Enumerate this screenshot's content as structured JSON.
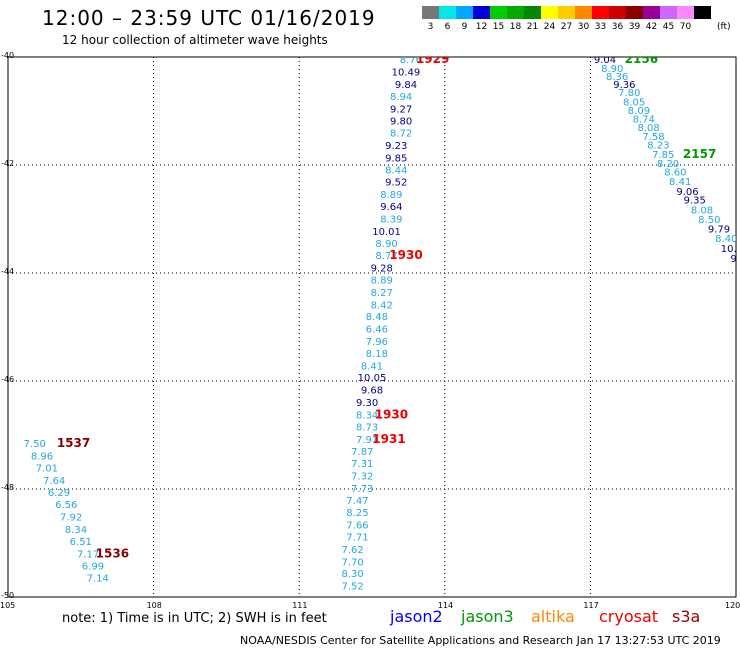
{
  "title": "12:00 – 23:59 UTC 01/16/2019",
  "subtitle": "12 hour collection of altimeter wave heights",
  "scale": {
    "unit": "(ft)",
    "levels": [
      {
        "label": "3",
        "color": "#777777"
      },
      {
        "label": "6",
        "color": "#00e8e8"
      },
      {
        "label": "9",
        "color": "#00a8ff"
      },
      {
        "label": "12",
        "color": "#0000dd"
      },
      {
        "label": "15",
        "color": "#00cc00"
      },
      {
        "label": "18",
        "color": "#00aa00"
      },
      {
        "label": "21",
        "color": "#008800"
      },
      {
        "label": "24",
        "color": "#ffff00"
      },
      {
        "label": "27",
        "color": "#ffcc00"
      },
      {
        "label": "30",
        "color": "#ff8800"
      },
      {
        "label": "33",
        "color": "#ff0000"
      },
      {
        "label": "36",
        "color": "#cc0000"
      },
      {
        "label": "39",
        "color": "#880000"
      },
      {
        "label": "42",
        "color": "#990099"
      },
      {
        "label": "45",
        "color": "#cc66ff"
      },
      {
        "label": "70",
        "color": "#ff88ff"
      },
      {
        "label": "",
        "color": "#000000"
      }
    ]
  },
  "note": "note:  1) Time is in UTC; 2) SWH is in feet",
  "satellites": [
    {
      "name": "jason2",
      "color": "#0000ff"
    },
    {
      "name": "jason3",
      "color": "#009900"
    },
    {
      "name": "altika",
      "color": "#ff8800"
    },
    {
      "name": "cryosat",
      "color": "#ee0000"
    },
    {
      "name": "s3a",
      "color": "#990000"
    }
  ],
  "credit": "NOAA/NESDIS Center for Satellite Applications and Research    Jan 17 13:27:53 UTC 2019",
  "chart_data": {
    "type": "scatter",
    "xlim": [
      105,
      120
    ],
    "ylim": [
      -50,
      -40
    ],
    "x_ticks": [
      "105",
      "108",
      "111",
      "114",
      "117",
      "120"
    ],
    "y_ticks": [
      "-40",
      "-42",
      "-44",
      "-46",
      "-48",
      "-50"
    ],
    "grid": true,
    "colors": {
      "light": "#22a8dd",
      "dark": "#000088"
    },
    "tracks": [
      {
        "id": "track-1929",
        "points": [
          [
            113.3,
            -40.04,
            "8.76",
            "light"
          ],
          [
            113.2,
            -40.27,
            "10.49",
            "dark"
          ],
          [
            113.2,
            -40.5,
            "9.84",
            "dark"
          ],
          [
            113.1,
            -40.72,
            "8.94",
            "light"
          ],
          [
            113.1,
            -40.95,
            "9.27",
            "dark"
          ],
          [
            113.1,
            -41.18,
            "9.80",
            "dark"
          ],
          [
            113.1,
            -41.4,
            "8.72",
            "light"
          ],
          [
            113.0,
            -41.63,
            "9.23",
            "dark"
          ],
          [
            113.0,
            -41.86,
            "9.85",
            "dark"
          ],
          [
            113.0,
            -42.08,
            "8.44",
            "light"
          ],
          [
            113.0,
            -42.31,
            "9.52",
            "dark"
          ],
          [
            112.9,
            -42.54,
            "8.89",
            "light"
          ],
          [
            112.9,
            -42.76,
            "9.64",
            "dark"
          ],
          [
            112.9,
            -42.99,
            "8.39",
            "light"
          ],
          [
            112.8,
            -43.22,
            "10.01",
            "dark"
          ],
          [
            112.8,
            -43.44,
            "8.90",
            "light"
          ],
          [
            112.8,
            -43.67,
            "8.77",
            "light"
          ],
          [
            112.7,
            -43.9,
            "9.28",
            "dark"
          ],
          [
            112.7,
            -44.12,
            "8.89",
            "light"
          ],
          [
            112.7,
            -44.35,
            "8.27",
            "light"
          ],
          [
            112.7,
            -44.58,
            "8.42",
            "light"
          ],
          [
            112.6,
            -44.8,
            "8.48",
            "light"
          ],
          [
            112.6,
            -45.03,
            "6.46",
            "light"
          ],
          [
            112.6,
            -45.26,
            "7.96",
            "light"
          ],
          [
            112.6,
            -45.48,
            "8.18",
            "light"
          ],
          [
            112.5,
            -45.71,
            "8.41",
            "light"
          ],
          [
            112.5,
            -45.93,
            "10.05",
            "dark"
          ],
          [
            112.5,
            -46.16,
            "9.68",
            "dark"
          ],
          [
            112.4,
            -46.39,
            "9.30",
            "dark"
          ],
          [
            112.4,
            -46.62,
            "8.34",
            "light"
          ],
          [
            112.4,
            -46.84,
            "8.73",
            "light"
          ],
          [
            112.4,
            -47.07,
            "7.91",
            "light"
          ],
          [
            112.3,
            -47.3,
            "7.87",
            "light"
          ],
          [
            112.3,
            -47.52,
            "7.31",
            "light"
          ],
          [
            112.3,
            -47.75,
            "7.32",
            "light"
          ],
          [
            112.3,
            -47.98,
            "7.73",
            "light"
          ],
          [
            112.2,
            -48.2,
            "7.47",
            "light"
          ],
          [
            112.2,
            -48.43,
            "8.25",
            "light"
          ],
          [
            112.2,
            -48.66,
            "7.66",
            "light"
          ],
          [
            112.2,
            -48.88,
            "7.71",
            "light"
          ],
          [
            112.1,
            -49.11,
            "7.62",
            "light"
          ],
          [
            112.1,
            -49.34,
            "7.70",
            "light"
          ],
          [
            112.1,
            -49.56,
            "8.30",
            "light"
          ],
          [
            112.1,
            -49.79,
            "7.52",
            "light"
          ]
        ],
        "labels": [
          {
            "text": "1929",
            "x": 113.75,
            "y": -40.04,
            "color": "#ee0000"
          },
          {
            "text": "1930",
            "x": 113.2,
            "y": -43.67,
            "color": "#ee0000"
          },
          {
            "text": "1930",
            "x": 112.9,
            "y": -46.62,
            "color": "#ee0000"
          },
          {
            "text": "1931",
            "x": 112.85,
            "y": -47.07,
            "color": "#ee0000"
          }
        ]
      },
      {
        "id": "track-2156",
        "points": [
          [
            117.3,
            -40.04,
            "9.04",
            "dark"
          ],
          [
            117.45,
            -40.2,
            "8.90",
            "light"
          ],
          [
            117.55,
            -40.35,
            "8.36",
            "light"
          ],
          [
            117.7,
            -40.5,
            "9.36",
            "dark"
          ],
          [
            117.8,
            -40.65,
            "7.80",
            "light"
          ],
          [
            117.9,
            -40.82,
            "8.05",
            "light"
          ],
          [
            118.0,
            -40.98,
            "8.09",
            "light"
          ],
          [
            118.1,
            -41.14,
            "8.74",
            "light"
          ],
          [
            118.2,
            -41.3,
            "8.08",
            "light"
          ],
          [
            118.3,
            -41.46,
            "7.58",
            "light"
          ],
          [
            118.4,
            -41.62,
            "8.23",
            "light"
          ],
          [
            118.5,
            -41.8,
            "7.85",
            "light"
          ],
          [
            118.6,
            -41.96,
            "8.20",
            "light"
          ],
          [
            118.75,
            -42.12,
            "8.60",
            "light"
          ],
          [
            118.85,
            -42.3,
            "8.41",
            "light"
          ],
          [
            119.0,
            -42.48,
            "9.06",
            "dark"
          ],
          [
            119.15,
            -42.64,
            "9.35",
            "dark"
          ],
          [
            119.3,
            -42.82,
            "8.08",
            "light"
          ],
          [
            119.45,
            -43.0,
            "8.50",
            "light"
          ],
          [
            119.65,
            -43.18,
            "9.79",
            "dark"
          ],
          [
            119.8,
            -43.35,
            "8.40",
            "light"
          ],
          [
            119.85,
            -43.54,
            "10.",
            "dark"
          ],
          [
            119.95,
            -43.72,
            "9",
            "dark"
          ]
        ],
        "labels": [
          {
            "text": "2156",
            "x": 118.05,
            "y": -40.04,
            "color": "#009900"
          },
          {
            "text": "2157",
            "x": 119.25,
            "y": -41.8,
            "color": "#009900"
          }
        ]
      },
      {
        "id": "track-1536",
        "points": [
          [
            105.55,
            -47.15,
            "7.50",
            "light"
          ],
          [
            105.7,
            -47.38,
            "8.96",
            "light"
          ],
          [
            105.8,
            -47.6,
            "7.01",
            "light"
          ],
          [
            105.95,
            -47.83,
            "7.64",
            "light"
          ],
          [
            106.05,
            -48.06,
            "6.29",
            "light"
          ],
          [
            106.2,
            -48.28,
            "6.56",
            "light"
          ],
          [
            106.3,
            -48.51,
            "7.92",
            "light"
          ],
          [
            106.4,
            -48.74,
            "8.34",
            "light"
          ],
          [
            106.5,
            -48.96,
            "6.51",
            "light"
          ],
          [
            106.65,
            -49.19,
            "7.17",
            "light"
          ],
          [
            106.75,
            -49.42,
            "6.99",
            "light"
          ],
          [
            106.85,
            -49.64,
            "7.14",
            "light"
          ]
        ],
        "labels": [
          {
            "text": "1537",
            "x": 106.35,
            "y": -47.15,
            "color": "#880000"
          },
          {
            "text": "1536",
            "x": 107.15,
            "y": -49.19,
            "color": "#880000"
          }
        ]
      }
    ]
  }
}
